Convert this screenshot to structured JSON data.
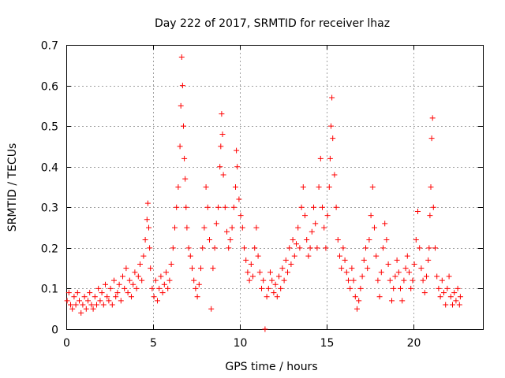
{
  "chart_data": {
    "type": "scatter",
    "title": "Day 222 of 2017, SRMTID for receiver lhaz",
    "xlabel": "GPS time / hours",
    "ylabel": "SRMTID / TECUs",
    "xlim": [
      0,
      24
    ],
    "ylim": [
      0,
      0.7
    ],
    "xticks": [
      0,
      5,
      10,
      15,
      20
    ],
    "yticks": [
      0,
      0.1,
      0.2,
      0.3,
      0.4,
      0.5,
      0.6,
      0.7
    ],
    "grid": true,
    "marker": "+",
    "color": "#ff0000",
    "series": [
      {
        "name": "SRMTID",
        "points": [
          [
            0.05,
            0.07
          ],
          [
            0.15,
            0.09
          ],
          [
            0.25,
            0.06
          ],
          [
            0.35,
            0.05
          ],
          [
            0.45,
            0.08
          ],
          [
            0.55,
            0.06
          ],
          [
            0.65,
            0.09
          ],
          [
            0.75,
            0.07
          ],
          [
            0.85,
            0.04
          ],
          [
            0.95,
            0.06
          ],
          [
            1.05,
            0.08
          ],
          [
            1.15,
            0.05
          ],
          [
            1.25,
            0.07
          ],
          [
            1.35,
            0.09
          ],
          [
            1.45,
            0.06
          ],
          [
            1.55,
            0.05
          ],
          [
            1.65,
            0.08
          ],
          [
            1.75,
            0.06
          ],
          [
            1.85,
            0.1
          ],
          [
            1.95,
            0.07
          ],
          [
            2.05,
            0.09
          ],
          [
            2.15,
            0.06
          ],
          [
            2.25,
            0.11
          ],
          [
            2.35,
            0.08
          ],
          [
            2.45,
            0.07
          ],
          [
            2.55,
            0.1
          ],
          [
            2.65,
            0.06
          ],
          [
            2.75,
            0.12
          ],
          [
            2.85,
            0.08
          ],
          [
            2.95,
            0.09
          ],
          [
            3.05,
            0.11
          ],
          [
            3.15,
            0.07
          ],
          [
            3.25,
            0.13
          ],
          [
            3.35,
            0.1
          ],
          [
            3.45,
            0.15
          ],
          [
            3.55,
            0.09
          ],
          [
            3.65,
            0.12
          ],
          [
            3.75,
            0.08
          ],
          [
            3.85,
            0.11
          ],
          [
            3.95,
            0.14
          ],
          [
            4.05,
            0.1
          ],
          [
            4.15,
            0.13
          ],
          [
            4.25,
            0.16
          ],
          [
            4.35,
            0.12
          ],
          [
            4.45,
            0.18
          ],
          [
            4.55,
            0.22
          ],
          [
            4.65,
            0.27
          ],
          [
            4.7,
            0.31
          ],
          [
            4.75,
            0.25
          ],
          [
            4.8,
            0.2
          ],
          [
            4.85,
            0.15
          ],
          [
            4.95,
            0.1
          ],
          [
            5.05,
            0.08
          ],
          [
            5.15,
            0.12
          ],
          [
            5.25,
            0.07
          ],
          [
            5.35,
            0.1
          ],
          [
            5.45,
            0.13
          ],
          [
            5.55,
            0.09
          ],
          [
            5.65,
            0.11
          ],
          [
            5.75,
            0.14
          ],
          [
            5.85,
            0.1
          ],
          [
            5.95,
            0.12
          ],
          [
            6.05,
            0.16
          ],
          [
            6.15,
            0.2
          ],
          [
            6.25,
            0.25
          ],
          [
            6.35,
            0.3
          ],
          [
            6.45,
            0.35
          ],
          [
            6.55,
            0.45
          ],
          [
            6.6,
            0.55
          ],
          [
            6.65,
            0.67
          ],
          [
            6.7,
            0.6
          ],
          [
            6.75,
            0.5
          ],
          [
            6.8,
            0.42
          ],
          [
            6.85,
            0.37
          ],
          [
            6.9,
            0.3
          ],
          [
            6.95,
            0.25
          ],
          [
            7.05,
            0.2
          ],
          [
            7.15,
            0.18
          ],
          [
            7.25,
            0.15
          ],
          [
            7.35,
            0.12
          ],
          [
            7.45,
            0.1
          ],
          [
            7.55,
            0.08
          ],
          [
            7.65,
            0.11
          ],
          [
            7.75,
            0.15
          ],
          [
            7.85,
            0.2
          ],
          [
            7.95,
            0.25
          ],
          [
            8.05,
            0.35
          ],
          [
            8.15,
            0.3
          ],
          [
            8.25,
            0.22
          ],
          [
            8.35,
            0.05
          ],
          [
            8.45,
            0.15
          ],
          [
            8.55,
            0.2
          ],
          [
            8.65,
            0.26
          ],
          [
            8.75,
            0.3
          ],
          [
            8.85,
            0.4
          ],
          [
            8.9,
            0.45
          ],
          [
            8.95,
            0.53
          ],
          [
            9.0,
            0.48
          ],
          [
            9.05,
            0.38
          ],
          [
            9.15,
            0.3
          ],
          [
            9.25,
            0.24
          ],
          [
            9.35,
            0.2
          ],
          [
            9.45,
            0.22
          ],
          [
            9.55,
            0.25
          ],
          [
            9.65,
            0.3
          ],
          [
            9.75,
            0.35
          ],
          [
            9.8,
            0.44
          ],
          [
            9.85,
            0.4
          ],
          [
            9.95,
            0.32
          ],
          [
            10.05,
            0.28
          ],
          [
            10.15,
            0.25
          ],
          [
            10.25,
            0.2
          ],
          [
            10.35,
            0.17
          ],
          [
            10.45,
            0.14
          ],
          [
            10.55,
            0.12
          ],
          [
            10.65,
            0.16
          ],
          [
            10.75,
            0.13
          ],
          [
            10.85,
            0.2
          ],
          [
            10.95,
            0.25
          ],
          [
            11.05,
            0.18
          ],
          [
            11.15,
            0.14
          ],
          [
            11.25,
            0.1
          ],
          [
            11.35,
            0.12
          ],
          [
            11.45,
            0.0
          ],
          [
            11.55,
            0.08
          ],
          [
            11.65,
            0.1
          ],
          [
            11.75,
            0.14
          ],
          [
            11.85,
            0.12
          ],
          [
            11.95,
            0.09
          ],
          [
            12.05,
            0.11
          ],
          [
            12.15,
            0.08
          ],
          [
            12.25,
            0.13
          ],
          [
            12.35,
            0.1
          ],
          [
            12.45,
            0.15
          ],
          [
            12.55,
            0.12
          ],
          [
            12.65,
            0.17
          ],
          [
            12.75,
            0.14
          ],
          [
            12.85,
            0.2
          ],
          [
            12.95,
            0.16
          ],
          [
            13.05,
            0.22
          ],
          [
            13.15,
            0.18
          ],
          [
            13.25,
            0.21
          ],
          [
            13.35,
            0.25
          ],
          [
            13.45,
            0.2
          ],
          [
            13.55,
            0.3
          ],
          [
            13.65,
            0.35
          ],
          [
            13.75,
            0.28
          ],
          [
            13.85,
            0.22
          ],
          [
            13.95,
            0.18
          ],
          [
            14.05,
            0.2
          ],
          [
            14.15,
            0.24
          ],
          [
            14.25,
            0.3
          ],
          [
            14.35,
            0.26
          ],
          [
            14.45,
            0.2
          ],
          [
            14.55,
            0.35
          ],
          [
            14.65,
            0.42
          ],
          [
            14.75,
            0.3
          ],
          [
            14.85,
            0.25
          ],
          [
            14.95,
            0.2
          ],
          [
            15.05,
            0.28
          ],
          [
            15.15,
            0.35
          ],
          [
            15.2,
            0.42
          ],
          [
            15.25,
            0.5
          ],
          [
            15.3,
            0.57
          ],
          [
            15.35,
            0.47
          ],
          [
            15.45,
            0.38
          ],
          [
            15.55,
            0.3
          ],
          [
            15.65,
            0.22
          ],
          [
            15.75,
            0.18
          ],
          [
            15.85,
            0.15
          ],
          [
            15.95,
            0.2
          ],
          [
            16.05,
            0.17
          ],
          [
            16.15,
            0.14
          ],
          [
            16.25,
            0.12
          ],
          [
            16.35,
            0.1
          ],
          [
            16.45,
            0.15
          ],
          [
            16.55,
            0.12
          ],
          [
            16.65,
            0.08
          ],
          [
            16.75,
            0.05
          ],
          [
            16.85,
            0.07
          ],
          [
            16.95,
            0.1
          ],
          [
            17.05,
            0.13
          ],
          [
            17.15,
            0.17
          ],
          [
            17.25,
            0.2
          ],
          [
            17.35,
            0.15
          ],
          [
            17.45,
            0.22
          ],
          [
            17.55,
            0.28
          ],
          [
            17.65,
            0.35
          ],
          [
            17.75,
            0.25
          ],
          [
            17.85,
            0.18
          ],
          [
            17.95,
            0.12
          ],
          [
            18.05,
            0.08
          ],
          [
            18.15,
            0.14
          ],
          [
            18.25,
            0.2
          ],
          [
            18.35,
            0.26
          ],
          [
            18.45,
            0.22
          ],
          [
            18.55,
            0.16
          ],
          [
            18.65,
            0.12
          ],
          [
            18.75,
            0.07
          ],
          [
            18.85,
            0.1
          ],
          [
            18.95,
            0.13
          ],
          [
            19.05,
            0.17
          ],
          [
            19.15,
            0.14
          ],
          [
            19.25,
            0.1
          ],
          [
            19.35,
            0.07
          ],
          [
            19.45,
            0.12
          ],
          [
            19.55,
            0.15
          ],
          [
            19.65,
            0.18
          ],
          [
            19.75,
            0.14
          ],
          [
            19.85,
            0.1
          ],
          [
            19.95,
            0.12
          ],
          [
            20.05,
            0.16
          ],
          [
            20.15,
            0.22
          ],
          [
            20.25,
            0.29
          ],
          [
            20.35,
            0.2
          ],
          [
            20.45,
            0.15
          ],
          [
            20.55,
            0.12
          ],
          [
            20.65,
            0.09
          ],
          [
            20.75,
            0.13
          ],
          [
            20.85,
            0.17
          ],
          [
            20.9,
            0.2
          ],
          [
            20.95,
            0.28
          ],
          [
            21.0,
            0.35
          ],
          [
            21.05,
            0.47
          ],
          [
            21.1,
            0.52
          ],
          [
            21.15,
            0.3
          ],
          [
            21.25,
            0.2
          ],
          [
            21.35,
            0.13
          ],
          [
            21.45,
            0.1
          ],
          [
            21.55,
            0.08
          ],
          [
            21.65,
            0.12
          ],
          [
            21.75,
            0.09
          ],
          [
            21.85,
            0.06
          ],
          [
            21.95,
            0.1
          ],
          [
            22.05,
            0.13
          ],
          [
            22.15,
            0.08
          ],
          [
            22.25,
            0.06
          ],
          [
            22.35,
            0.09
          ],
          [
            22.45,
            0.07
          ],
          [
            22.55,
            0.1
          ],
          [
            22.65,
            0.06
          ],
          [
            22.7,
            0.08
          ]
        ]
      }
    ]
  }
}
